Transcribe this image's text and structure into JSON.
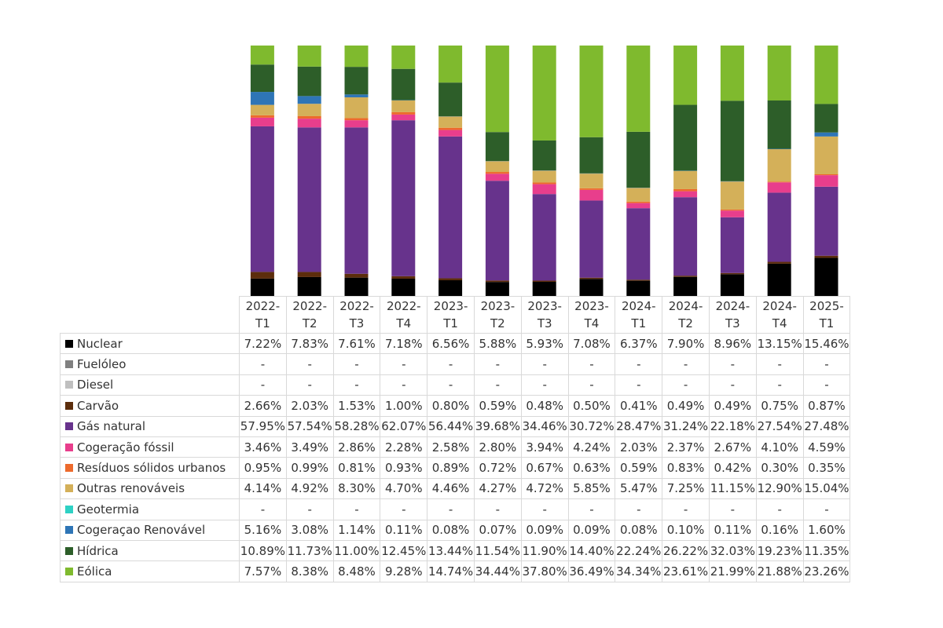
{
  "chart_data": {
    "type": "bar",
    "stacked": true,
    "normalized": true,
    "categories": [
      "2022-T1",
      "2022-T2",
      "2022-T3",
      "2022-T4",
      "2023-T1",
      "2023-T2",
      "2023-T3",
      "2023-T4",
      "2024-T1",
      "2024-T2",
      "2024-T3",
      "2024-T4",
      "2025-T1"
    ],
    "category_labels": [
      [
        "2022-",
        "T1"
      ],
      [
        "2022-",
        "T2"
      ],
      [
        "2022-",
        "T3"
      ],
      [
        "2022-",
        "T4"
      ],
      [
        "2023-",
        "T1"
      ],
      [
        "2023-",
        "T2"
      ],
      [
        "2023-",
        "T3"
      ],
      [
        "2023-",
        "T4"
      ],
      [
        "2024-",
        "T1"
      ],
      [
        "2024-",
        "T2"
      ],
      [
        "2024-",
        "T3"
      ],
      [
        "2024-",
        "T4"
      ],
      [
        "2025-",
        "T1"
      ]
    ],
    "series": [
      {
        "name": "Nuclear",
        "color": "#000000",
        "values": [
          7.22,
          7.83,
          7.61,
          7.18,
          6.56,
          5.88,
          5.93,
          7.08,
          6.37,
          7.9,
          8.96,
          13.15,
          15.46
        ],
        "labels": [
          "7.22%",
          "7.83%",
          "7.61%",
          "7.18%",
          "6.56%",
          "5.88%",
          "5.93%",
          "7.08%",
          "6.37%",
          "7.90%",
          "8.96%",
          "13.15%",
          "15.46%"
        ]
      },
      {
        "name": "Fuelóleo",
        "color": "#808080",
        "values": [
          0,
          0,
          0,
          0,
          0,
          0,
          0,
          0,
          0,
          0,
          0,
          0,
          0
        ],
        "labels": [
          "-",
          "-",
          "-",
          "-",
          "-",
          "-",
          "-",
          "-",
          "-",
          "-",
          "-",
          "-",
          "-"
        ]
      },
      {
        "name": "Diesel",
        "color": "#bfbfbf",
        "values": [
          0,
          0,
          0,
          0,
          0,
          0,
          0,
          0,
          0,
          0,
          0,
          0,
          0
        ],
        "labels": [
          "-",
          "-",
          "-",
          "-",
          "-",
          "-",
          "-",
          "-",
          "-",
          "-",
          "-",
          "-",
          "-"
        ]
      },
      {
        "name": "Carvão",
        "color": "#5c2d0c",
        "values": [
          2.66,
          2.03,
          1.53,
          1.0,
          0.8,
          0.59,
          0.48,
          0.5,
          0.41,
          0.49,
          0.49,
          0.75,
          0.87
        ],
        "labels": [
          "2.66%",
          "2.03%",
          "1.53%",
          "1.00%",
          "0.80%",
          "0.59%",
          "0.48%",
          "0.50%",
          "0.41%",
          "0.49%",
          "0.49%",
          "0.75%",
          "0.87%"
        ]
      },
      {
        "name": "Gás natural",
        "color": "#67338c",
        "values": [
          57.95,
          57.54,
          58.28,
          62.07,
          56.44,
          39.68,
          34.46,
          30.72,
          28.47,
          31.24,
          22.18,
          27.54,
          27.48
        ],
        "labels": [
          "57.95%",
          "57.54%",
          "58.28%",
          "62.07%",
          "56.44%",
          "39.68%",
          "34.46%",
          "30.72%",
          "28.47%",
          "31.24%",
          "22.18%",
          "27.54%",
          "27.48%"
        ]
      },
      {
        "name": "Cogeração fóssil",
        "color": "#e83e8c",
        "values": [
          3.46,
          3.49,
          2.86,
          2.28,
          2.58,
          2.8,
          3.94,
          4.24,
          2.03,
          2.37,
          2.67,
          4.1,
          4.59
        ],
        "labels": [
          "3.46%",
          "3.49%",
          "2.86%",
          "2.28%",
          "2.58%",
          "2.80%",
          "3.94%",
          "4.24%",
          "2.03%",
          "2.37%",
          "2.67%",
          "4.10%",
          "4.59%"
        ]
      },
      {
        "name": "Resíduos sólidos urbanos",
        "color": "#ed6a2c",
        "values": [
          0.95,
          0.99,
          0.81,
          0.93,
          0.89,
          0.72,
          0.67,
          0.63,
          0.59,
          0.83,
          0.42,
          0.3,
          0.35
        ],
        "labels": [
          "0.95%",
          "0.99%",
          "0.81%",
          "0.93%",
          "0.89%",
          "0.72%",
          "0.67%",
          "0.63%",
          "0.59%",
          "0.83%",
          "0.42%",
          "0.30%",
          "0.35%"
        ]
      },
      {
        "name": "Outras renováveis",
        "color": "#d4b059",
        "values": [
          4.14,
          4.92,
          8.3,
          4.7,
          4.46,
          4.27,
          4.72,
          5.85,
          5.47,
          7.25,
          11.15,
          12.9,
          15.04
        ],
        "labels": [
          "4.14%",
          "4.92%",
          "8.30%",
          "4.70%",
          "4.46%",
          "4.27%",
          "4.72%",
          "5.85%",
          "5.47%",
          "7.25%",
          "11.15%",
          "12.90%",
          "15.04%"
        ]
      },
      {
        "name": "Geotermia",
        "color": "#2ed1c4",
        "values": [
          0,
          0,
          0,
          0,
          0,
          0,
          0,
          0,
          0,
          0,
          0,
          0,
          0
        ],
        "labels": [
          "-",
          "-",
          "-",
          "-",
          "-",
          "-",
          "-",
          "-",
          "-",
          "-",
          "-",
          "-",
          "-"
        ]
      },
      {
        "name": "Cogeraçao Renovável",
        "color": "#2e75b6",
        "values": [
          5.16,
          3.08,
          1.14,
          0.11,
          0.08,
          0.07,
          0.09,
          0.09,
          0.08,
          0.1,
          0.11,
          0.16,
          1.6
        ],
        "labels": [
          "5.16%",
          "3.08%",
          "1.14%",
          "0.11%",
          "0.08%",
          "0.07%",
          "0.09%",
          "0.09%",
          "0.08%",
          "0.10%",
          "0.11%",
          "0.16%",
          "1.60%"
        ]
      },
      {
        "name": "Hídrica",
        "color": "#2d5e29",
        "values": [
          10.89,
          11.73,
          11.0,
          12.45,
          13.44,
          11.54,
          11.9,
          14.4,
          22.24,
          26.22,
          32.03,
          19.23,
          11.35
        ],
        "labels": [
          "10.89%",
          "11.73%",
          "11.00%",
          "12.45%",
          "13.44%",
          "11.54%",
          "11.90%",
          "14.40%",
          "22.24%",
          "26.22%",
          "32.03%",
          "19.23%",
          "11.35%"
        ]
      },
      {
        "name": "Eólica",
        "color": "#7fba2e",
        "values": [
          7.57,
          8.38,
          8.48,
          9.28,
          14.74,
          34.44,
          37.8,
          36.49,
          34.34,
          23.61,
          21.99,
          21.88,
          23.26
        ],
        "labels": [
          "7.57%",
          "8.38%",
          "8.48%",
          "9.28%",
          "14.74%",
          "34.44%",
          "37.80%",
          "36.49%",
          "34.34%",
          "23.61%",
          "21.99%",
          "21.88%",
          "23.26%"
        ]
      }
    ],
    "ylim": [
      0,
      100
    ],
    "grid": false,
    "legend": "table-bottom"
  }
}
